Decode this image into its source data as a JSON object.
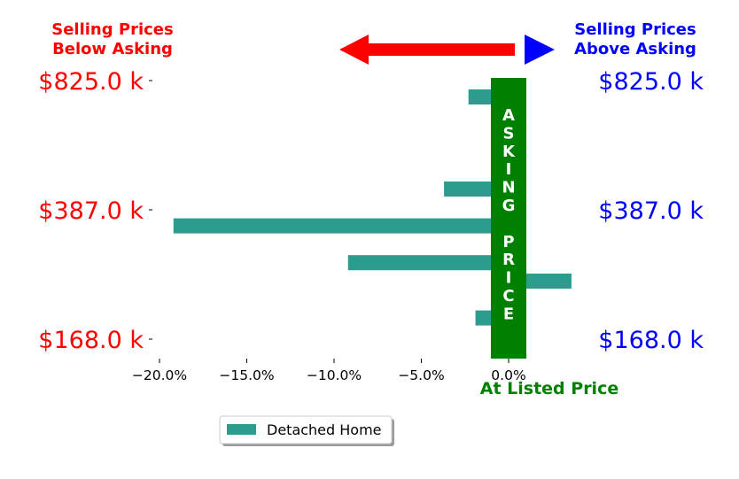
{
  "header": {
    "left_line1": "Selling Prices",
    "left_line2": "Below Asking",
    "right_line1": "Selling Prices",
    "right_line2": "Above Asking",
    "left_color": "#ff0000",
    "right_color": "#0000ff"
  },
  "arrows": {
    "left_arrow_color": "#ff0000",
    "right_arrow_color": "#0000ff"
  },
  "price_labels": {
    "left": [
      "$825.0 k",
      "$387.0 k",
      "$168.0 k"
    ],
    "right": [
      "$825.0 k",
      "$387.0 k",
      "$168.0 k"
    ]
  },
  "center_band": {
    "letters": [
      "A",
      "S",
      "K",
      "I",
      "N",
      "G",
      "",
      "P",
      "R",
      "I",
      "C",
      "E"
    ],
    "color": "#008000"
  },
  "listed_label": "At Listed Price",
  "listed_color": "#008000",
  "chart_data": {
    "type": "bar",
    "orientation": "horizontal",
    "bar_color": "#2a9d8f",
    "xlim": [
      -22,
      5
    ],
    "xticks": [
      -20,
      -15,
      -10,
      -5,
      0
    ],
    "xtick_labels": [
      "−20.0%",
      "−15.0%",
      "−10.0%",
      "−5.0%",
      "0.0%"
    ],
    "y_price_ticks": [
      "$825.0 k",
      "$387.0 k",
      "$168.0 k"
    ],
    "series": [
      {
        "name": "Detached Home",
        "values": [
          -2.3,
          0.6,
          0.6,
          0.6,
          -0.6,
          -3.7,
          0.6,
          -19.2,
          0.6,
          -9.2,
          3.6,
          0.6,
          -1.9,
          0.6
        ]
      }
    ],
    "legend": {
      "entry": "Detached Home",
      "placement": "bottom-center"
    }
  }
}
